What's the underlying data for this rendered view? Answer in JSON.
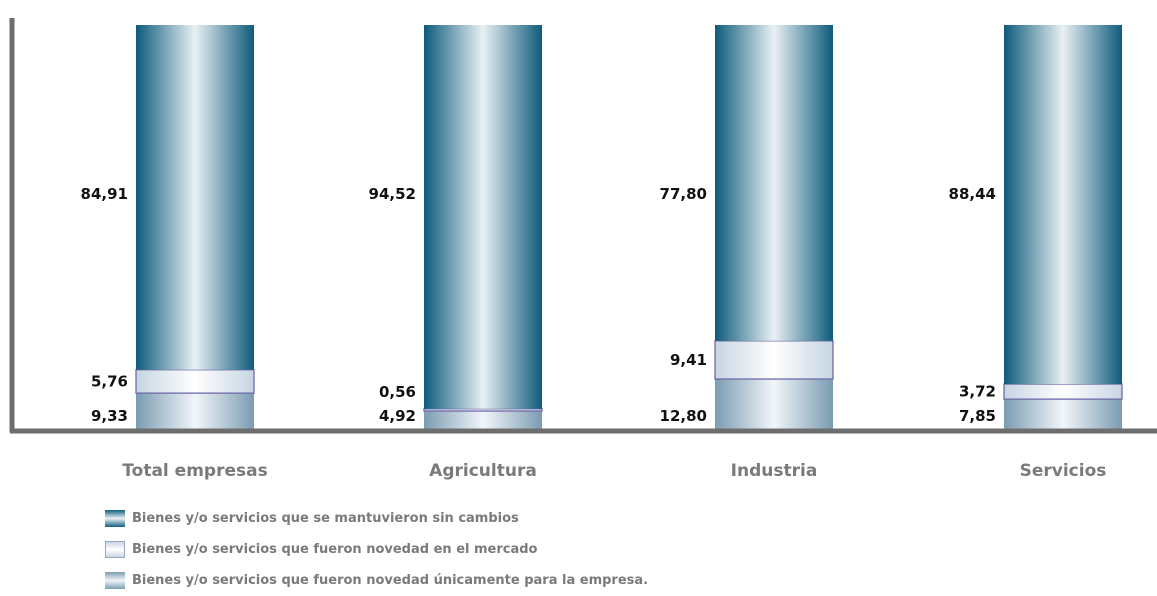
{
  "chart_data": {
    "type": "bar",
    "stacked": true,
    "categories": [
      "Total empresas",
      "Agricultura",
      "Industria",
      "Servicios"
    ],
    "series": [
      {
        "name": "Bienes y/o servicios que fueron novedad únicamente para la empresa.",
        "values": [
          9.33,
          4.92,
          12.8,
          7.85
        ],
        "labels": [
          "9,33",
          "4,92",
          "12,80",
          "7,85"
        ]
      },
      {
        "name": "Bienes y/o servicios que fueron novedad en el mercado",
        "values": [
          5.76,
          0.56,
          9.41,
          3.72
        ],
        "labels": [
          "5,76",
          "0,56",
          "9,41",
          "3,72"
        ]
      },
      {
        "name": "Bienes y/o servicios que se mantuvieron sin cambios",
        "values": [
          84.91,
          94.52,
          77.8,
          88.44
        ],
        "labels": [
          "84,91",
          "94,52",
          "77,80",
          "88,44"
        ]
      }
    ],
    "ylim": [
      0,
      100
    ],
    "grid": false,
    "legend_position": "bottom-left",
    "colors": {
      "unchanged": "#0f5f7f",
      "market_novelty": "#eaf0f6",
      "firm_novelty": "#7b9db3",
      "axis": "#6e6e6e"
    }
  },
  "legend": [
    {
      "label": "Bienes y/o servicios que se mantuvieron sin cambios",
      "swatch": "dark-teal"
    },
    {
      "label": "Bienes y/o servicios que fueron novedad en el mercado",
      "swatch": "light"
    },
    {
      "label": "Bienes y/o servicios que fueron novedad únicamente para la empresa.",
      "swatch": "mid-blue"
    }
  ]
}
